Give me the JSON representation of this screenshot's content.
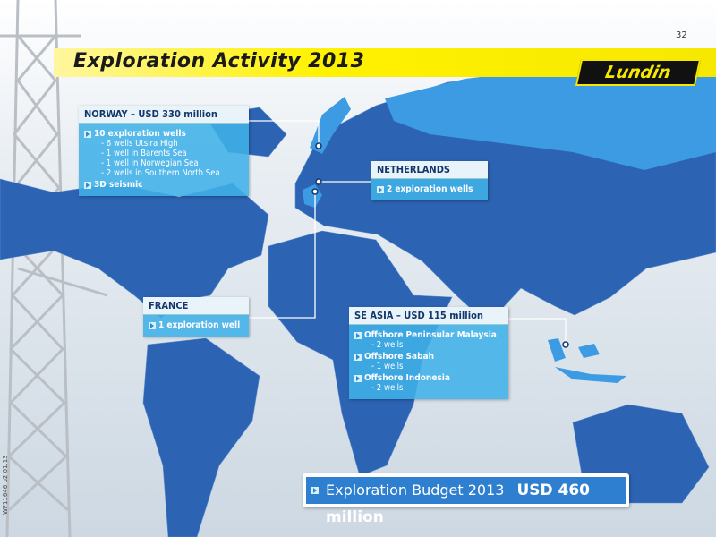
{
  "page_number": "32",
  "title": "Exploration Activity 2013",
  "logo": "Lundin",
  "side_code": "WF11646 p2 01.13",
  "norway": {
    "header": "NORWAY – USD 330 million",
    "items": [
      {
        "text": "10 exploration wells",
        "subs": [
          "- 6 wells Utsira High",
          "- 1 well in Barents Sea",
          "- 1 well in Norwegian Sea",
          "- 2 wells in Southern North Sea"
        ]
      },
      {
        "text": "3D seismic"
      }
    ]
  },
  "netherlands": {
    "header": "NETHERLANDS",
    "items": [
      {
        "text": "2 exploration wells"
      }
    ]
  },
  "france": {
    "header": "FRANCE",
    "items": [
      {
        "text": "1 exploration well"
      }
    ]
  },
  "se_asia": {
    "header": "SE ASIA – USD 115 million",
    "items": [
      {
        "text": "Offshore Peninsular Malaysia",
        "subs": [
          "- 2 wells"
        ]
      },
      {
        "text": "Offshore Sabah",
        "subs": [
          "- 1 wells"
        ]
      },
      {
        "text": "Offshore Indonesia",
        "subs": [
          "- 2 wells"
        ]
      }
    ]
  },
  "footer": {
    "label": "Exploration Budget 2013",
    "amount": "USD 460 million"
  }
}
